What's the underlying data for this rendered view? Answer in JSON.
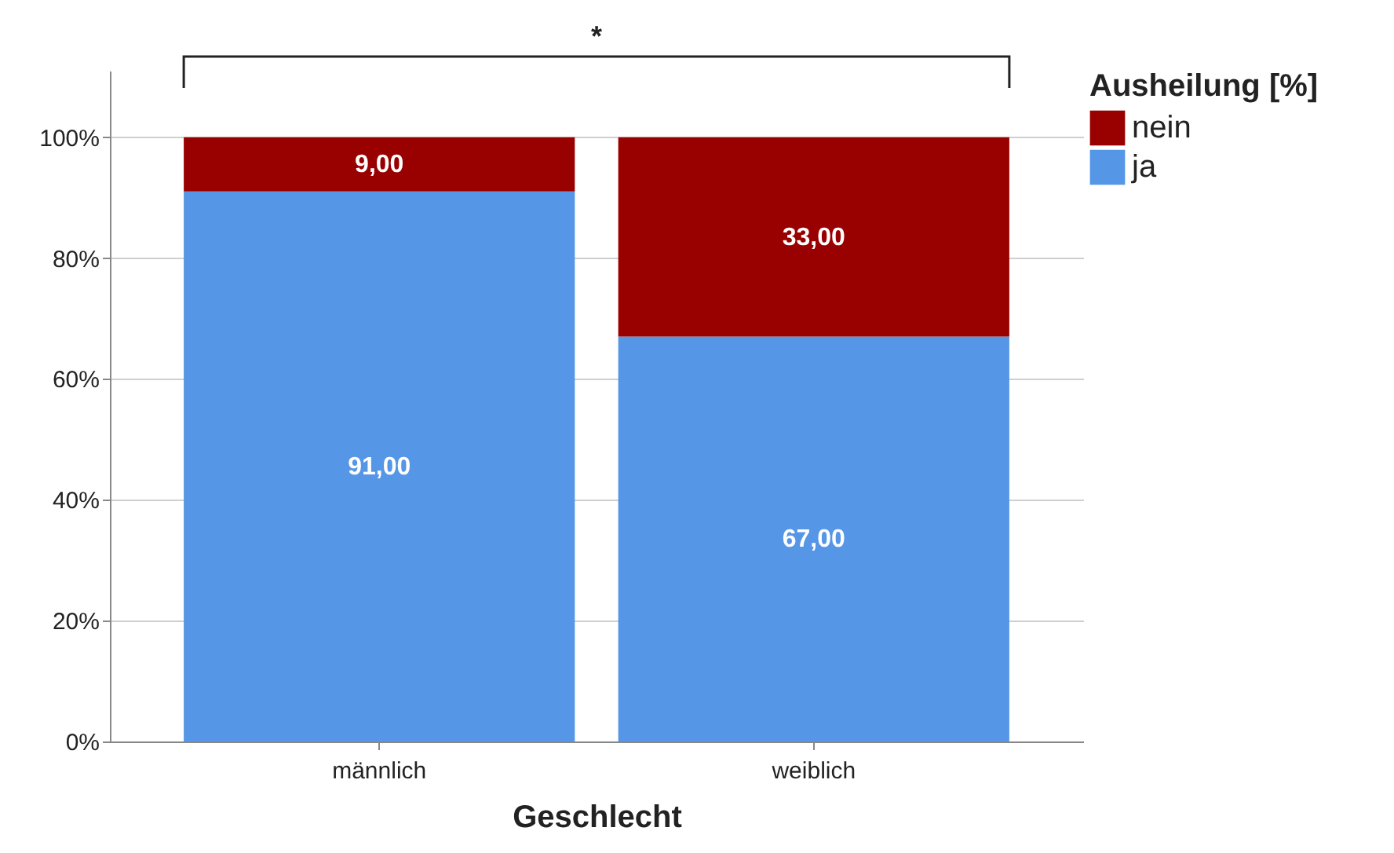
{
  "chart_data": {
    "type": "bar",
    "stacked": true,
    "categories": [
      "männlich",
      "weiblich"
    ],
    "series": [
      {
        "name": "ja",
        "color": "#5596e6",
        "values": [
          91,
          67
        ],
        "value_labels": [
          "91,00",
          "67,00"
        ]
      },
      {
        "name": "nein",
        "color": "#990000",
        "values": [
          9,
          33
        ],
        "value_labels": [
          "9,00",
          "33,00"
        ]
      }
    ],
    "xlabel": "Geschlecht",
    "legend_title": "Ausheilung [%]",
    "legend": "top right",
    "grid": "y",
    "ylim": [
      0,
      111
    ],
    "yticks": [
      {
        "value": 0,
        "label": "0%"
      },
      {
        "value": 20,
        "label": "20%"
      },
      {
        "value": 40,
        "label": "40%"
      },
      {
        "value": 60,
        "label": "60%"
      },
      {
        "value": 80,
        "label": "80%"
      },
      {
        "value": 100,
        "label": "100%"
      }
    ],
    "annotations": [
      "*"
    ]
  }
}
